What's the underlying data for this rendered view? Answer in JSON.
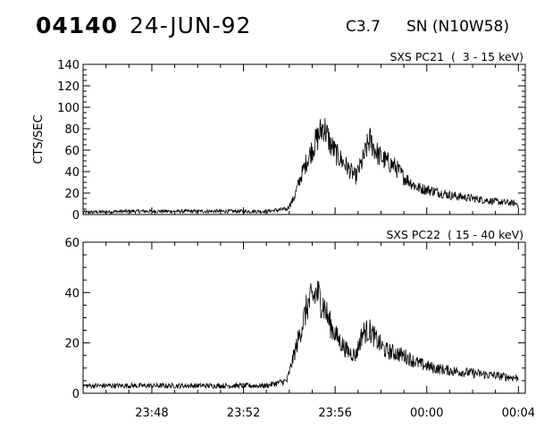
{
  "header": {
    "event_id": "04140",
    "date": "24-JUN-92",
    "flare_class": "C3.7",
    "location": "SN (N10W58)"
  },
  "chart_data": [
    {
      "type": "line",
      "panel_title": "SXS PC21  (  3 - 15 keV)",
      "ylabel": "CTS/SEC",
      "ylim": [
        0,
        140
      ],
      "yticks": [
        0,
        20,
        40,
        60,
        80,
        100,
        120,
        140
      ],
      "ytick_labels": [
        "0",
        "20",
        "40",
        "60",
        "80",
        "100",
        "120",
        "140"
      ],
      "xlim_minutes_after_2345": [
        0,
        19.3
      ],
      "xticks_minutes": [
        3,
        7,
        11,
        15,
        19
      ],
      "xtick_labels": [
        "23:48",
        "23:52",
        "23:56",
        "00:00",
        "00:04"
      ],
      "show_xtick_labels": false,
      "series": [
        {
          "x": [
            0,
            2,
            4,
            6,
            8,
            8.9,
            9.2,
            9.5,
            9.8,
            10.2,
            10.5,
            10.8,
            11.1,
            11.5,
            11.9,
            12.2,
            12.5,
            12.9,
            13.2,
            13.6,
            14,
            14.6,
            15.3,
            16,
            17,
            18,
            19
          ],
          "y": [
            2,
            3,
            3,
            3,
            3,
            5,
            15,
            35,
            52,
            70,
            83,
            65,
            55,
            45,
            35,
            50,
            70,
            55,
            50,
            45,
            35,
            25,
            22,
            18,
            15,
            12,
            10
          ]
        }
      ]
    },
    {
      "type": "line",
      "panel_title": "SXS PC22  ( 15 - 40 keV)",
      "ylabel": "",
      "ylim": [
        0,
        60
      ],
      "yticks": [
        0,
        20,
        40,
        60
      ],
      "ytick_labels": [
        "0",
        "20",
        "40",
        "60"
      ],
      "xlim_minutes_after_2345": [
        0,
        19.3
      ],
      "xticks_minutes": [
        3,
        7,
        11,
        15,
        19
      ],
      "xtick_labels": [
        "23:48",
        "23:52",
        "23:56",
        "00:00",
        "00:04"
      ],
      "show_xtick_labels": true,
      "series": [
        {
          "x": [
            0,
            2,
            4,
            6,
            8,
            8.9,
            9.2,
            9.5,
            9.8,
            10.2,
            10.5,
            10.8,
            11.1,
            11.5,
            11.9,
            12.2,
            12.5,
            12.9,
            13.2,
            13.6,
            14,
            14.6,
            15.3,
            16,
            17,
            18,
            19
          ],
          "y": [
            3,
            3,
            3,
            3,
            3,
            5,
            15,
            25,
            35,
            40,
            35,
            27,
            22,
            17,
            15,
            24,
            25,
            20,
            17,
            16,
            15,
            12,
            10,
            9,
            8,
            7,
            6
          ]
        }
      ]
    }
  ]
}
